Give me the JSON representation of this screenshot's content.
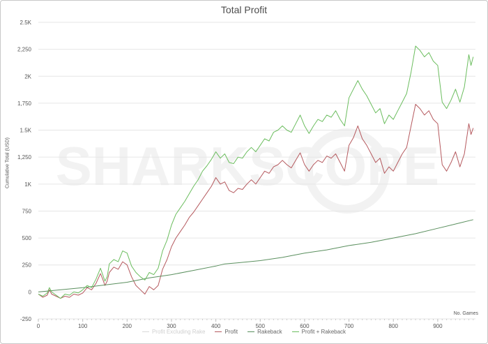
{
  "chart_data": {
    "type": "line",
    "title": "Total Profit",
    "ylabel": "Cumulative Total (USD)",
    "xlabel": "No. Games",
    "xlim": [
      0,
      985
    ],
    "ylim": [
      -250,
      2500
    ],
    "yticks": [
      {
        "value": 2500,
        "label": "2.5K"
      },
      {
        "value": 2250,
        "label": "2,250"
      },
      {
        "value": 2000,
        "label": "2K"
      },
      {
        "value": 1750,
        "label": "1,750"
      },
      {
        "value": 1500,
        "label": "1.5K"
      },
      {
        "value": 1250,
        "label": "1,250"
      },
      {
        "value": 1000,
        "label": "1K"
      },
      {
        "value": 750,
        "label": "750"
      },
      {
        "value": 500,
        "label": "500"
      },
      {
        "value": 250,
        "label": "250"
      },
      {
        "value": 0,
        "label": "0"
      },
      {
        "value": -250,
        "label": "-250"
      }
    ],
    "xticks": [
      0,
      100,
      200,
      300,
      400,
      500,
      600,
      700,
      800,
      900
    ],
    "grid": true,
    "legend_position": "bottom",
    "watermark": "SHARKSCOPE",
    "series": [
      {
        "name": "Profit Excluding Rake",
        "color": "#d9d9d9",
        "points": []
      },
      {
        "name": "Profit",
        "color": "#b5595e",
        "points": [
          [
            0,
            -20
          ],
          [
            10,
            -50
          ],
          [
            20,
            -30
          ],
          [
            25,
            20
          ],
          [
            30,
            -20
          ],
          [
            40,
            -40
          ],
          [
            50,
            -60
          ],
          [
            60,
            -40
          ],
          [
            70,
            -50
          ],
          [
            80,
            -20
          ],
          [
            90,
            -30
          ],
          [
            100,
            -10
          ],
          [
            110,
            40
          ],
          [
            120,
            20
          ],
          [
            130,
            80
          ],
          [
            140,
            170
          ],
          [
            145,
            120
          ],
          [
            150,
            60
          ],
          [
            155,
            100
          ],
          [
            160,
            180
          ],
          [
            170,
            230
          ],
          [
            180,
            210
          ],
          [
            190,
            280
          ],
          [
            200,
            250
          ],
          [
            210,
            140
          ],
          [
            220,
            60
          ],
          [
            230,
            20
          ],
          [
            240,
            -20
          ],
          [
            250,
            50
          ],
          [
            260,
            20
          ],
          [
            270,
            60
          ],
          [
            280,
            210
          ],
          [
            290,
            300
          ],
          [
            300,
            420
          ],
          [
            310,
            500
          ],
          [
            320,
            560
          ],
          [
            330,
            620
          ],
          [
            340,
            690
          ],
          [
            350,
            740
          ],
          [
            360,
            800
          ],
          [
            370,
            860
          ],
          [
            380,
            920
          ],
          [
            390,
            980
          ],
          [
            400,
            1060
          ],
          [
            410,
            1000
          ],
          [
            420,
            1020
          ],
          [
            430,
            940
          ],
          [
            440,
            920
          ],
          [
            450,
            960
          ],
          [
            460,
            950
          ],
          [
            470,
            1000
          ],
          [
            480,
            1040
          ],
          [
            490,
            1000
          ],
          [
            500,
            1060
          ],
          [
            510,
            1120
          ],
          [
            520,
            1100
          ],
          [
            530,
            1160
          ],
          [
            540,
            1180
          ],
          [
            550,
            1220
          ],
          [
            560,
            1180
          ],
          [
            570,
            1150
          ],
          [
            580,
            1220
          ],
          [
            590,
            1290
          ],
          [
            600,
            1180
          ],
          [
            610,
            1120
          ],
          [
            620,
            1180
          ],
          [
            630,
            1220
          ],
          [
            640,
            1200
          ],
          [
            650,
            1260
          ],
          [
            660,
            1240
          ],
          [
            670,
            1280
          ],
          [
            680,
            1200
          ],
          [
            690,
            1120
          ],
          [
            700,
            1360
          ],
          [
            710,
            1430
          ],
          [
            720,
            1540
          ],
          [
            730,
            1420
          ],
          [
            740,
            1360
          ],
          [
            750,
            1280
          ],
          [
            760,
            1200
          ],
          [
            770,
            1240
          ],
          [
            780,
            1100
          ],
          [
            790,
            1160
          ],
          [
            800,
            1120
          ],
          [
            810,
            1200
          ],
          [
            820,
            1280
          ],
          [
            830,
            1340
          ],
          [
            840,
            1540
          ],
          [
            850,
            1740
          ],
          [
            860,
            1700
          ],
          [
            870,
            1640
          ],
          [
            880,
            1680
          ],
          [
            890,
            1600
          ],
          [
            900,
            1560
          ],
          [
            910,
            1180
          ],
          [
            920,
            1120
          ],
          [
            930,
            1200
          ],
          [
            940,
            1300
          ],
          [
            950,
            1160
          ],
          [
            960,
            1280
          ],
          [
            970,
            1560
          ],
          [
            975,
            1460
          ],
          [
            980,
            1520
          ]
        ]
      },
      {
        "name": "Rakeback",
        "color": "#5a8f5e",
        "points": [
          [
            0,
            0
          ],
          [
            100,
            40
          ],
          [
            200,
            90
          ],
          [
            250,
            130
          ],
          [
            300,
            160
          ],
          [
            350,
            200
          ],
          [
            400,
            240
          ],
          [
            420,
            260
          ],
          [
            450,
            270
          ],
          [
            500,
            290
          ],
          [
            550,
            320
          ],
          [
            600,
            360
          ],
          [
            650,
            390
          ],
          [
            700,
            430
          ],
          [
            750,
            460
          ],
          [
            800,
            500
          ],
          [
            850,
            540
          ],
          [
            900,
            590
          ],
          [
            950,
            640
          ],
          [
            980,
            670
          ]
        ]
      },
      {
        "name": "Profit + Rakeback",
        "color": "#6bbd5e",
        "points": [
          [
            0,
            -20
          ],
          [
            10,
            -40
          ],
          [
            20,
            -10
          ],
          [
            25,
            40
          ],
          [
            30,
            0
          ],
          [
            40,
            -30
          ],
          [
            50,
            -60
          ],
          [
            60,
            -20
          ],
          [
            70,
            -30
          ],
          [
            80,
            0
          ],
          [
            90,
            -10
          ],
          [
            100,
            20
          ],
          [
            110,
            60
          ],
          [
            120,
            40
          ],
          [
            130,
            120
          ],
          [
            140,
            220
          ],
          [
            145,
            160
          ],
          [
            150,
            100
          ],
          [
            155,
            140
          ],
          [
            160,
            260
          ],
          [
            170,
            300
          ],
          [
            180,
            280
          ],
          [
            190,
            380
          ],
          [
            200,
            360
          ],
          [
            210,
            240
          ],
          [
            220,
            180
          ],
          [
            230,
            140
          ],
          [
            240,
            110
          ],
          [
            250,
            180
          ],
          [
            260,
            160
          ],
          [
            270,
            220
          ],
          [
            280,
            380
          ],
          [
            290,
            480
          ],
          [
            300,
            620
          ],
          [
            310,
            720
          ],
          [
            320,
            780
          ],
          [
            330,
            840
          ],
          [
            340,
            910
          ],
          [
            350,
            980
          ],
          [
            360,
            1040
          ],
          [
            370,
            1120
          ],
          [
            380,
            1170
          ],
          [
            390,
            1230
          ],
          [
            400,
            1300
          ],
          [
            410,
            1240
          ],
          [
            420,
            1280
          ],
          [
            430,
            1200
          ],
          [
            440,
            1190
          ],
          [
            450,
            1250
          ],
          [
            460,
            1240
          ],
          [
            470,
            1300
          ],
          [
            480,
            1340
          ],
          [
            490,
            1300
          ],
          [
            500,
            1360
          ],
          [
            510,
            1420
          ],
          [
            520,
            1400
          ],
          [
            530,
            1480
          ],
          [
            540,
            1500
          ],
          [
            550,
            1540
          ],
          [
            560,
            1500
          ],
          [
            570,
            1480
          ],
          [
            580,
            1560
          ],
          [
            590,
            1640
          ],
          [
            600,
            1540
          ],
          [
            610,
            1470
          ],
          [
            620,
            1540
          ],
          [
            630,
            1600
          ],
          [
            640,
            1580
          ],
          [
            650,
            1640
          ],
          [
            660,
            1620
          ],
          [
            670,
            1680
          ],
          [
            680,
            1600
          ],
          [
            690,
            1540
          ],
          [
            700,
            1800
          ],
          [
            710,
            1880
          ],
          [
            720,
            1960
          ],
          [
            730,
            1880
          ],
          [
            740,
            1820
          ],
          [
            750,
            1740
          ],
          [
            760,
            1660
          ],
          [
            770,
            1700
          ],
          [
            780,
            1560
          ],
          [
            790,
            1640
          ],
          [
            800,
            1600
          ],
          [
            810,
            1680
          ],
          [
            820,
            1760
          ],
          [
            830,
            1840
          ],
          [
            840,
            2040
          ],
          [
            850,
            2280
          ],
          [
            860,
            2240
          ],
          [
            870,
            2180
          ],
          [
            880,
            2220
          ],
          [
            890,
            2140
          ],
          [
            900,
            2100
          ],
          [
            910,
            1760
          ],
          [
            920,
            1700
          ],
          [
            930,
            1780
          ],
          [
            940,
            1880
          ],
          [
            950,
            1760
          ],
          [
            960,
            1900
          ],
          [
            970,
            2200
          ],
          [
            975,
            2100
          ],
          [
            980,
            2180
          ]
        ]
      }
    ]
  }
}
